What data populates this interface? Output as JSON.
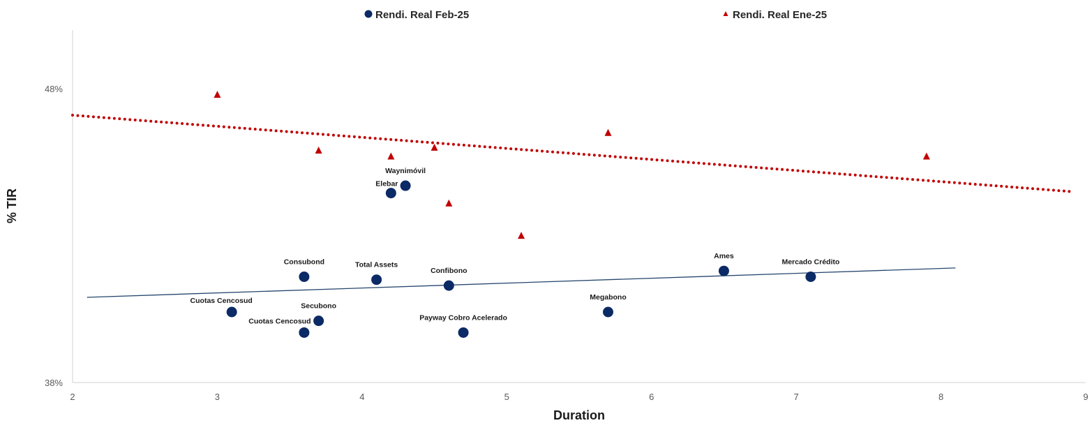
{
  "chart_data": {
    "type": "scatter",
    "xlabel": "Duration",
    "ylabel": "% TIR",
    "xlim": [
      2,
      9
    ],
    "ylim": [
      38,
      50
    ],
    "x_ticks": [
      "2",
      "3",
      "4",
      "5",
      "6",
      "7",
      "8",
      "9"
    ],
    "x_tick_values": [
      2,
      3,
      4,
      5,
      6,
      7,
      8,
      9
    ],
    "y_ticks": [
      "38%",
      "48%"
    ],
    "y_tick_values": [
      38,
      48
    ],
    "grid": false,
    "legend_position": "top",
    "series": [
      {
        "name": "Rendi. Real Feb-25",
        "marker": "circle",
        "color": "#0b2a66",
        "points": [
          {
            "label": "Waynimóvil",
            "x": 4.3,
            "y": 44.7
          },
          {
            "label": "Elebar",
            "x": 4.2,
            "y": 44.45
          },
          {
            "label": "Consubond",
            "x": 3.6,
            "y": 41.6
          },
          {
            "label": "Total Assets",
            "x": 4.1,
            "y": 41.5
          },
          {
            "label": "Confibono",
            "x": 4.6,
            "y": 41.3
          },
          {
            "label": "Ames",
            "x": 6.5,
            "y": 41.8
          },
          {
            "label": "Mercado Crédito",
            "x": 7.1,
            "y": 41.6
          },
          {
            "label": "Cuotas Cencosud",
            "x": 3.1,
            "y": 40.4
          },
          {
            "label": "Secubono",
            "x": 3.7,
            "y": 40.1
          },
          {
            "label": "Cuotas Cencosud",
            "x": 3.6,
            "y": 39.7
          },
          {
            "label": "Payway Cobro Acelerado",
            "x": 4.7,
            "y": 39.7
          },
          {
            "label": "Megabono",
            "x": 5.7,
            "y": 40.4
          }
        ],
        "trendline": {
          "style": "solid",
          "color": "#26466e",
          "from": [
            2.1,
            40.9
          ],
          "to": [
            8.1,
            41.9
          ]
        }
      },
      {
        "name": "Rendi. Real Ene-25",
        "marker": "triangle",
        "color": "#c00000",
        "points": [
          {
            "x": 3.0,
            "y": 47.8
          },
          {
            "x": 3.7,
            "y": 45.9
          },
          {
            "x": 4.2,
            "y": 45.7
          },
          {
            "x": 4.5,
            "y": 46.0
          },
          {
            "x": 4.6,
            "y": 44.1
          },
          {
            "x": 5.1,
            "y": 43.0
          },
          {
            "x": 5.7,
            "y": 46.5
          },
          {
            "x": 7.9,
            "y": 45.7
          }
        ],
        "trendline": {
          "style": "dotted",
          "color": "#c00000",
          "from": [
            2.0,
            47.1
          ],
          "to": [
            8.9,
            44.5
          ]
        }
      }
    ]
  }
}
